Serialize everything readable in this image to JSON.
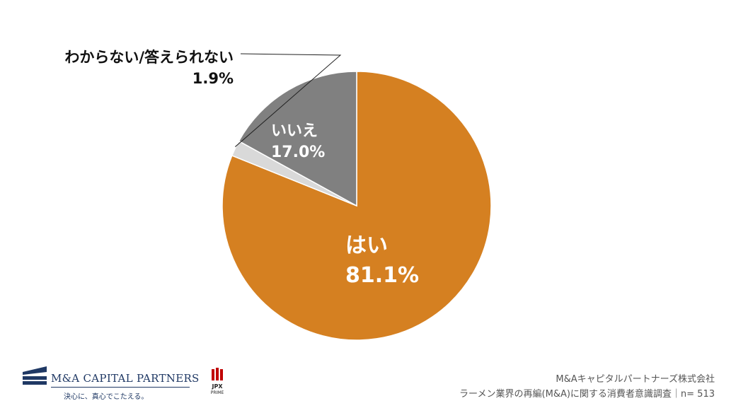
{
  "chart_data": {
    "type": "pie",
    "slices": [
      {
        "label": "はい",
        "value": 81.1,
        "value_text": "81.1%",
        "color": "#d58021"
      },
      {
        "label": "わからない/答えられない",
        "value": 1.9,
        "value_text": "1.9%",
        "color": "#d9d9d9"
      },
      {
        "label": "いいえ",
        "value": 17.0,
        "value_text": "17.0%",
        "color": "#808080"
      }
    ]
  },
  "branding": {
    "company_logo_text": "M&A CAPITAL PARTNERS",
    "tagline": "決心に、真心でこたえる。",
    "exchange_name": "JPX",
    "exchange_sub": "PRIME"
  },
  "footer": {
    "company": "M&Aキャピタルパートナーズ株式会社",
    "survey": "ラーメン業界の再編(M&A)に関する消費者意識調査｜n= 513"
  }
}
